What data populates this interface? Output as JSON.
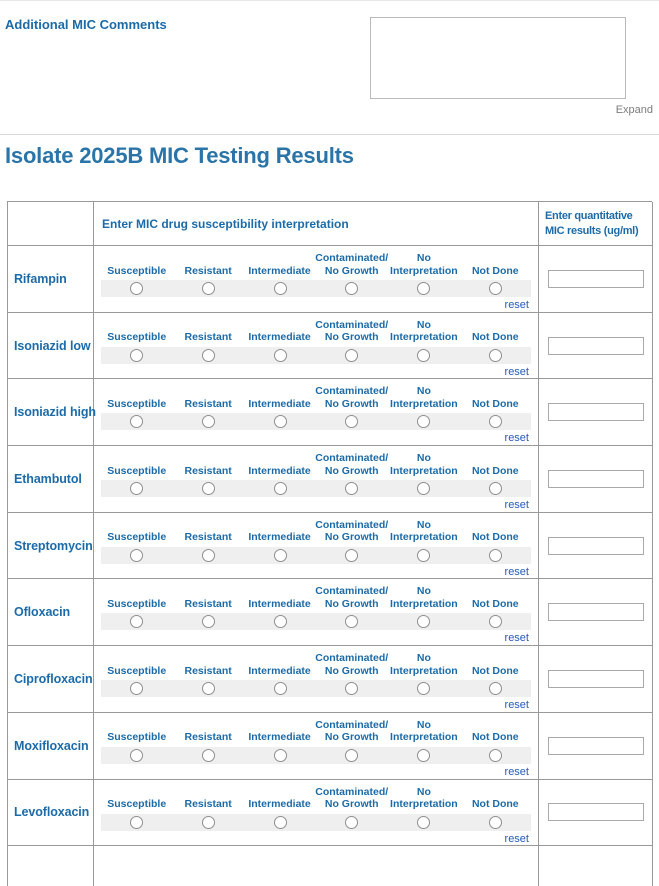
{
  "comments": {
    "label": "Additional MIC Comments",
    "value": "",
    "expand_label": "Expand"
  },
  "page_title": "Isolate 2025B MIC Testing Results",
  "table": {
    "header": {
      "interpretation": "Enter MIC drug susceptibility interpretation",
      "quantitative_line1": "Enter quantitative",
      "quantitative_line2": "MIC results (ug/ml)"
    },
    "options": [
      {
        "label": "Susceptible"
      },
      {
        "label": "Resistant"
      },
      {
        "label": "Intermediate"
      },
      {
        "top": "Contaminated/",
        "label": "No Growth"
      },
      {
        "top": "No",
        "label": "Interpretation"
      },
      {
        "label": "Not Done"
      }
    ],
    "reset_label": "reset",
    "drugs": [
      {
        "name": "Rifampin",
        "mic_value": ""
      },
      {
        "name": "Isoniazid low",
        "mic_value": ""
      },
      {
        "name": "Isoniazid high",
        "mic_value": ""
      },
      {
        "name": "Ethambutol",
        "mic_value": ""
      },
      {
        "name": "Streptomycin",
        "mic_value": ""
      },
      {
        "name": "Ofloxacin",
        "mic_value": ""
      },
      {
        "name": "Ciprofloxacin",
        "mic_value": ""
      },
      {
        "name": "Moxifloxacin",
        "mic_value": ""
      },
      {
        "name": "Levofloxacin",
        "mic_value": ""
      }
    ]
  },
  "colors": {
    "accent_blue": "#1C6BA8",
    "title_blue": "#2A74A8",
    "link_blue": "#2659BD",
    "border_gray": "#999999",
    "strip_gray": "#EFEFEF"
  }
}
